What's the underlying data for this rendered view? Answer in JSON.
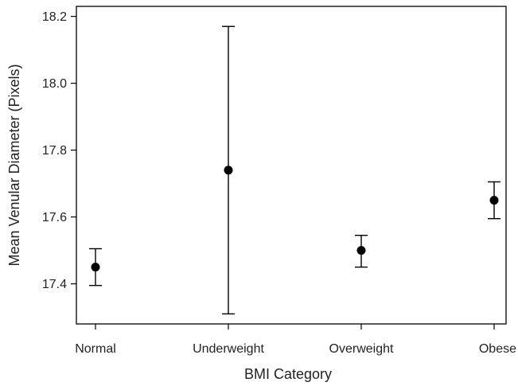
{
  "chart_data": {
    "type": "scatter",
    "subtype": "point-with-error-bars",
    "title": "",
    "xlabel": "BMI Category",
    "ylabel": "Mean Venular Diameter (Pixels)",
    "categories": [
      "Normal",
      "Underweight",
      "Overweight",
      "Obese"
    ],
    "series": [
      {
        "values": [
          17.45,
          17.74,
          17.5,
          17.65
        ],
        "lower": [
          17.395,
          17.31,
          17.45,
          17.595
        ],
        "upper": [
          17.505,
          18.17,
          17.545,
          17.705
        ]
      }
    ],
    "ylim": [
      17.28,
      18.23
    ],
    "yticks": [
      17.4,
      17.6,
      17.8,
      18.0,
      18.2
    ],
    "ytick_labels": [
      "17.4",
      "17.6",
      "17.8",
      "18.0",
      "18.2"
    ],
    "grid": false,
    "legend": "none",
    "colors": {
      "marker": "#000000",
      "axis": "#000000",
      "text": "#222222"
    }
  }
}
